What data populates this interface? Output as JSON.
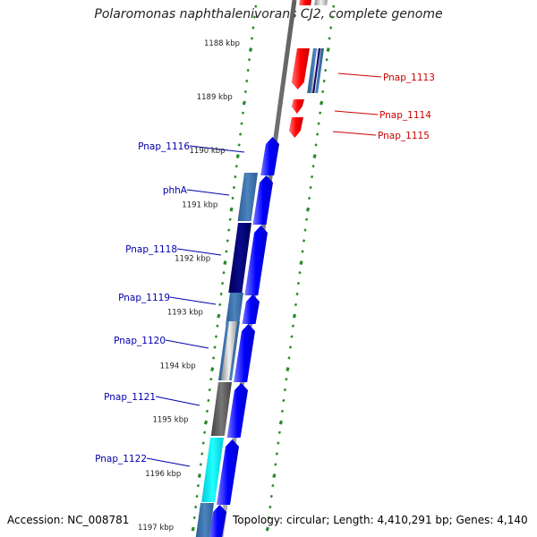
{
  "title": "Polaromonas naphthalenivorans CJ2, complete genome",
  "accession": "Accession: NC_008781",
  "topology": "Topology: circular; Length: 4,410,291 bp; Genes: 4,140",
  "colors": {
    "backbone": "#8a8a8a",
    "tick": "#2a8a2a",
    "forward_label": "#0000aa",
    "reverse_label": "#cc0000"
  },
  "kbp_labels": [
    "1188 kbp",
    "1189 kbp",
    "1190 kbp",
    "1191 kbp",
    "1192 kbp",
    "1193 kbp",
    "1194 kbp",
    "1195 kbp",
    "1196 kbp",
    "1197 kbp"
  ],
  "forward_genes": [
    "Pnap_1116",
    "phhA",
    "Pnap_1118",
    "Pnap_1119",
    "Pnap_1120",
    "Pnap_1121",
    "Pnap_1122"
  ],
  "reverse_genes": [
    "Pnap_1113",
    "Pnap_1114",
    "Pnap_1115"
  ]
}
